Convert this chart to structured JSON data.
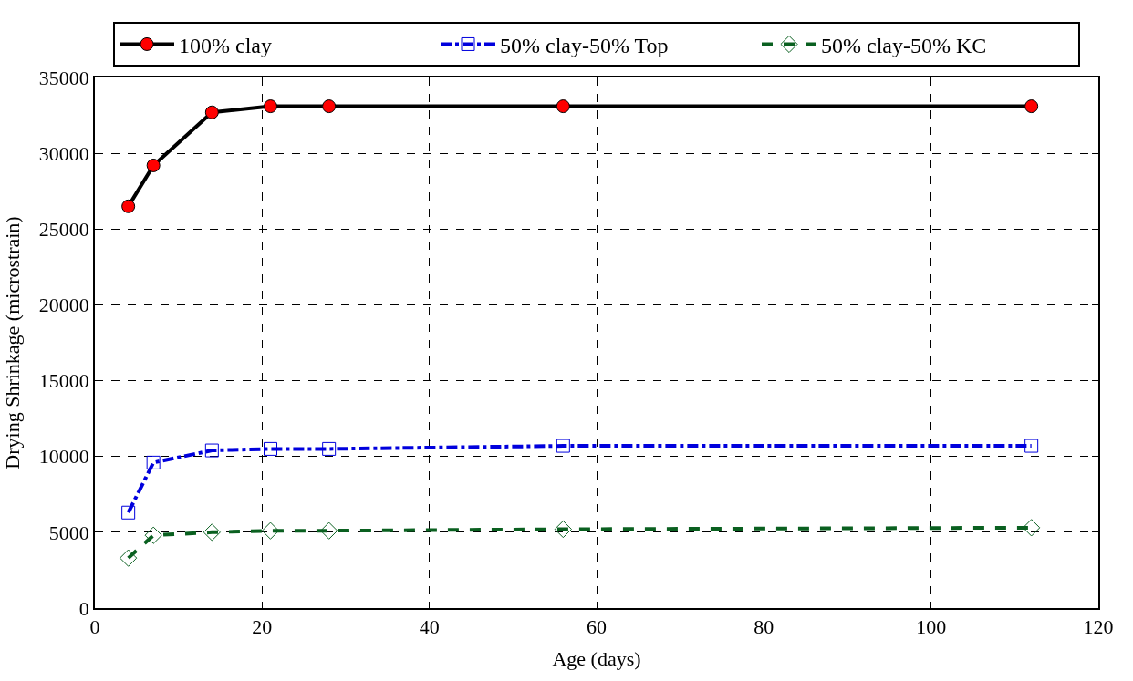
{
  "chart_data": {
    "type": "line",
    "xlabel": "Age (days)",
    "ylabel": "Drying Shrinkage (microstrain)",
    "x": [
      4,
      7,
      14,
      21,
      28,
      56,
      112
    ],
    "series": [
      {
        "name": "100% clay",
        "color": "#000000",
        "marker": "circle",
        "line_style": "solid",
        "values": [
          26500,
          29200,
          32700,
          33100,
          33100,
          33100,
          33100
        ]
      },
      {
        "name": "50% clay-50% Top",
        "color": "#0000dd",
        "marker": "square",
        "line_style": "dashdot",
        "values": [
          6300,
          9600,
          10400,
          10500,
          10500,
          10700,
          10700
        ]
      },
      {
        "name": "50% clay-50% KC",
        "color": "#0a6020",
        "marker": "diamond",
        "line_style": "dashed",
        "values": [
          3300,
          4800,
          5000,
          5100,
          5100,
          5200,
          5300
        ]
      }
    ],
    "xlim": [
      0,
      120
    ],
    "xticks": [
      0,
      20,
      40,
      60,
      80,
      100,
      120
    ],
    "ylim": [
      0,
      35000
    ],
    "yticks": [
      0,
      5000,
      10000,
      15000,
      20000,
      25000,
      30000,
      35000
    ],
    "grid": true,
    "legend": "top"
  }
}
